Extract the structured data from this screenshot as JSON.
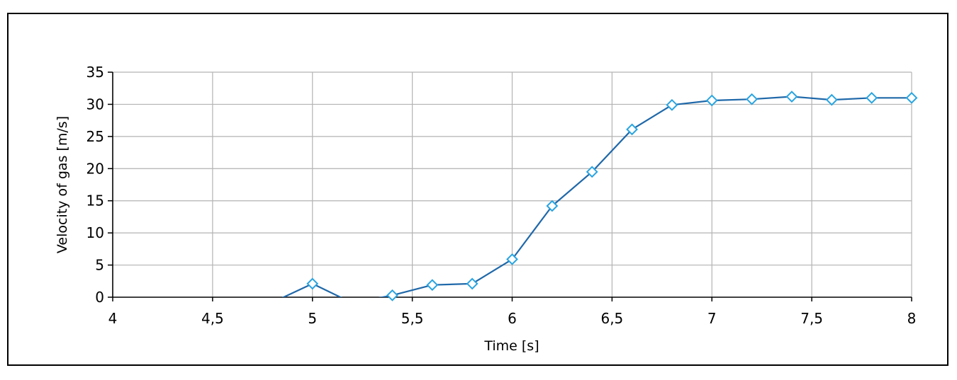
{
  "chart_data": {
    "type": "scatter",
    "title": "",
    "xlabel": "Time [s]",
    "ylabel": "Velocity of gas [m/s]",
    "xlim": [
      4,
      8
    ],
    "ylim": [
      0,
      35
    ],
    "x_ticks": [
      4,
      4.5,
      5,
      5.5,
      6,
      6.5,
      7,
      7.5,
      8
    ],
    "x_tick_labels": [
      "4",
      "4,5",
      "5",
      "5,5",
      "6",
      "6,5",
      "7",
      "7,5",
      "8"
    ],
    "y_ticks": [
      0,
      5,
      10,
      15,
      20,
      25,
      30,
      35
    ],
    "y_tick_labels": [
      "0",
      "5",
      "10",
      "15",
      "20",
      "25",
      "30",
      "35"
    ],
    "grid": true,
    "legend": "none",
    "series": [
      {
        "line_color": "#1f68a9",
        "marker_color": "#29a4e0",
        "marker": "diamond",
        "x": [
          4.8,
          5.0,
          5.2,
          5.4,
          5.6,
          5.8,
          6.0,
          6.2,
          6.4,
          6.6,
          6.8,
          7.0,
          7.2,
          7.4,
          7.6,
          7.8,
          8.0
        ],
        "y": [
          -0.8,
          2.1,
          -0.9,
          0.3,
          1.9,
          2.1,
          5.9,
          14.2,
          19.5,
          26.1,
          29.9,
          30.6,
          30.8,
          31.2,
          30.7,
          31.0,
          31.0
        ],
        "markers_shown": [
          false,
          true,
          false,
          true,
          true,
          true,
          true,
          true,
          true,
          true,
          true,
          true,
          true,
          true,
          true,
          true,
          true
        ]
      }
    ]
  }
}
